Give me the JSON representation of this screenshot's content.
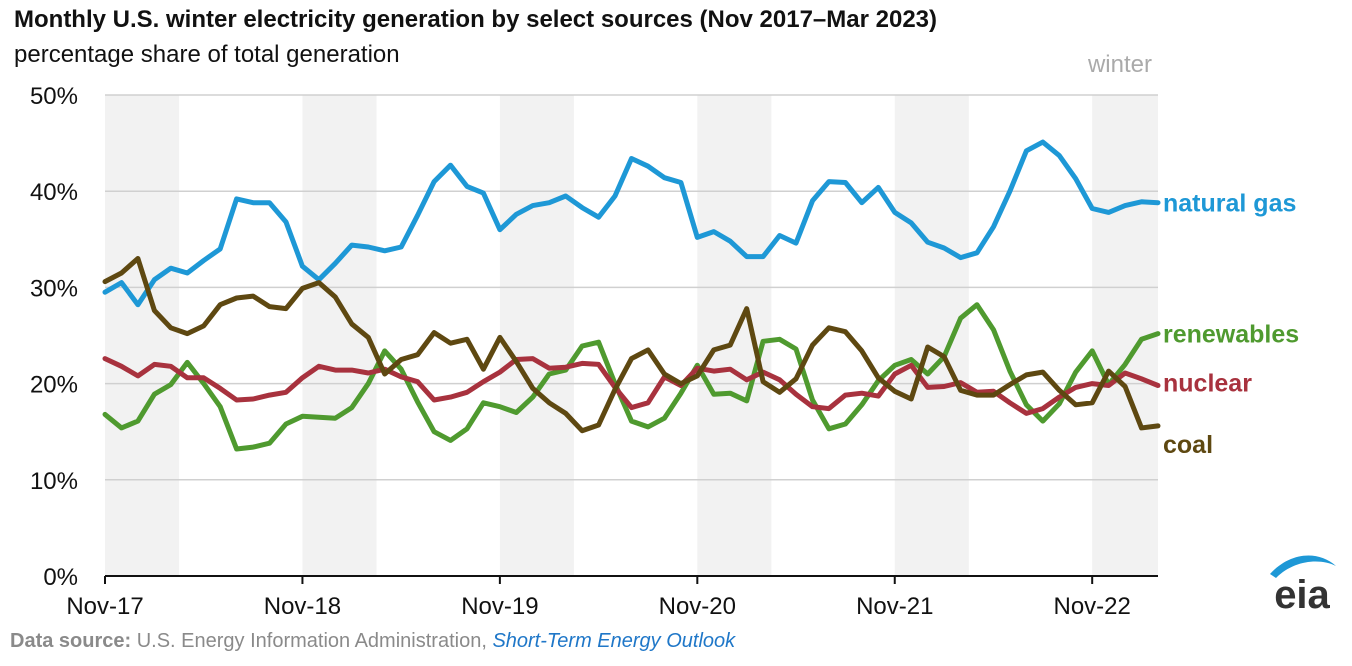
{
  "title": "Monthly U.S. winter electricity generation by select sources (Nov 2017–Mar 2023)",
  "subtitle": "percentage share of total generation",
  "source": {
    "label": "Data source:",
    "text": " U.S. Energy Information Administration, ",
    "link": "Short-Term Energy Outlook"
  },
  "logo_text": "eia",
  "colors": {
    "natural_gas": "#1e98d6",
    "renewables": "#4f9a2f",
    "nuclear": "#a8323e",
    "coal": "#5e4811",
    "shade": "#f2f2f2",
    "grid": "#d0d0d0",
    "winter_label": "#aaaaaa"
  },
  "chart_data": {
    "type": "line",
    "title": "Monthly U.S. winter electricity generation by select sources (Nov 2017–Mar 2023)",
    "ylabel": "percentage share of total generation",
    "ylim": [
      0,
      50
    ],
    "y_ticks": [
      "0%",
      "10%",
      "20%",
      "30%",
      "40%",
      "50%"
    ],
    "x_tick_labels": [
      "Nov-17",
      "Nov-18",
      "Nov-19",
      "Nov-20",
      "Nov-21",
      "Nov-22"
    ],
    "x_start": "Nov-2017",
    "x_end": "Mar-2023",
    "shading_label": "winter",
    "shaded_periods": "Nov–Mar of each winter",
    "series": [
      {
        "name": "natural gas",
        "color_key": "natural_gas",
        "values": [
          29.5,
          30.5,
          28.2,
          30.8,
          32.0,
          31.5,
          32.8,
          34.0,
          39.2,
          38.8,
          38.8,
          36.8,
          32.2,
          30.8,
          32.5,
          34.4,
          34.2,
          33.8,
          34.2,
          37.5,
          41.0,
          42.7,
          40.5,
          39.8,
          36.0,
          37.6,
          38.5,
          38.8,
          39.5,
          38.3,
          37.3,
          39.5,
          43.4,
          42.6,
          41.4,
          40.9,
          35.2,
          35.8,
          34.8,
          33.2,
          33.2,
          35.4,
          34.6,
          39.0,
          41.0,
          40.9,
          38.8,
          40.4,
          37.8,
          36.7,
          34.7,
          34.1,
          33.1,
          33.6,
          36.3,
          40.0,
          44.2,
          45.1,
          43.7,
          41.3,
          38.2,
          37.8,
          38.5,
          38.9,
          38.8
        ]
      },
      {
        "name": "renewables",
        "color_key": "renewables",
        "values": [
          16.8,
          15.4,
          16.1,
          18.9,
          19.9,
          22.2,
          20.0,
          17.6,
          13.2,
          13.4,
          13.8,
          15.8,
          16.6,
          16.5,
          16.4,
          17.5,
          20.0,
          23.4,
          21.5,
          18.1,
          15.0,
          14.1,
          15.3,
          18.0,
          17.6,
          17.0,
          18.6,
          21.0,
          21.4,
          23.9,
          24.3,
          20.0,
          16.1,
          15.5,
          16.4,
          19.0,
          21.9,
          18.9,
          19.0,
          18.2,
          24.4,
          24.6,
          23.6,
          18.3,
          15.3,
          15.8,
          17.8,
          20.3,
          21.9,
          22.5,
          21.0,
          22.8,
          26.8,
          28.2,
          25.6,
          21.3,
          17.8,
          16.1,
          17.9,
          21.2,
          23.4,
          19.9,
          22.0,
          24.6,
          25.2
        ]
      },
      {
        "name": "nuclear",
        "color_key": "nuclear",
        "values": [
          22.6,
          21.8,
          20.8,
          22.0,
          21.8,
          20.6,
          20.6,
          19.5,
          18.3,
          18.4,
          18.8,
          19.1,
          20.6,
          21.8,
          21.4,
          21.4,
          21.1,
          21.5,
          20.7,
          20.2,
          18.3,
          18.6,
          19.1,
          20.2,
          21.2,
          22.5,
          22.6,
          21.6,
          21.7,
          22.1,
          22.0,
          19.6,
          17.5,
          18.0,
          20.7,
          19.8,
          21.6,
          21.3,
          21.5,
          20.4,
          21.2,
          20.4,
          18.9,
          17.6,
          17.4,
          18.8,
          19.0,
          18.7,
          21.0,
          21.9,
          19.6,
          19.7,
          20.1,
          19.1,
          19.2,
          18.0,
          16.9,
          17.4,
          18.6,
          19.6,
          20.0,
          19.8,
          21.1,
          20.5,
          19.8
        ]
      },
      {
        "name": "coal",
        "color_key": "coal",
        "values": [
          30.6,
          31.5,
          33.0,
          27.6,
          25.8,
          25.2,
          26.0,
          28.2,
          28.9,
          29.1,
          28.0,
          27.8,
          29.9,
          30.5,
          29.0,
          26.2,
          24.8,
          21.0,
          22.5,
          23.0,
          25.3,
          24.2,
          24.6,
          21.5,
          24.8,
          22.3,
          19.5,
          18.0,
          16.9,
          15.1,
          15.7,
          19.4,
          22.6,
          23.5,
          21.0,
          20.0,
          20.8,
          23.5,
          24.0,
          27.8,
          20.2,
          19.1,
          20.5,
          24.0,
          25.8,
          25.4,
          23.4,
          20.6,
          19.2,
          18.4,
          23.8,
          22.8,
          19.3,
          18.8,
          18.8,
          19.9,
          20.9,
          21.2,
          19.3,
          17.8,
          18.0,
          21.3,
          19.7,
          15.4,
          15.6
        ]
      }
    ]
  }
}
